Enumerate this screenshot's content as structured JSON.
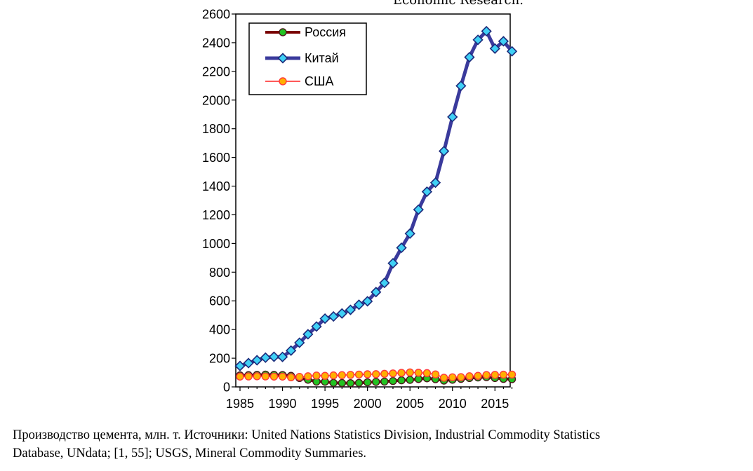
{
  "header_fragment": "Economic Research.",
  "caption": {
    "line1": "Производство цемента, млн. т. Источники:  United Nations Statistics Division, Industrial Commodity Statistics",
    "line2": "Database, UNdata; [1, 55]; USGS, Mineral Commodity Summaries."
  },
  "chart_data": {
    "type": "line",
    "title": "",
    "xlabel": "",
    "ylabel": "",
    "xlim": [
      1985,
      2017
    ],
    "ylim": [
      0,
      2600
    ],
    "x_ticks": [
      1985,
      1990,
      1995,
      2000,
      2005,
      2010,
      2015
    ],
    "y_ticks": [
      0,
      200,
      400,
      600,
      800,
      1000,
      1200,
      1400,
      1600,
      1800,
      2000,
      2200,
      2400,
      2600
    ],
    "legend_position": "top-left",
    "x": [
      1985,
      1986,
      1987,
      1988,
      1989,
      1990,
      1991,
      1992,
      1993,
      1994,
      1995,
      1996,
      1997,
      1998,
      1999,
      2000,
      2001,
      2002,
      2003,
      2004,
      2005,
      2006,
      2007,
      2008,
      2009,
      2010,
      2011,
      2012,
      2013,
      2014,
      2015,
      2016,
      2017
    ],
    "series": [
      {
        "name": "Россия",
        "line_color": "#7a0000",
        "marker_fill": "#22c322",
        "marker": "circle",
        "values": [
          80,
          82,
          84,
          86,
          84,
          83,
          77,
          62,
          50,
          37,
          36,
          28,
          27,
          26,
          28,
          32,
          35,
          37,
          41,
          46,
          49,
          55,
          60,
          54,
          44,
          50,
          56,
          62,
          66,
          68,
          62,
          56,
          54
        ]
      },
      {
        "name": "Китай",
        "line_color": "#3a3a9c",
        "marker_fill": "#3fd0f5",
        "marker": "diamond",
        "values": [
          146,
          166,
          186,
          204,
          210,
          209,
          253,
          308,
          367,
          421,
          476,
          491,
          512,
          537,
          573,
          597,
          661,
          725,
          862,
          970,
          1069,
          1236,
          1361,
          1424,
          1644,
          1882,
          2099,
          2299,
          2420,
          2480,
          2359,
          2410,
          2340
        ]
      },
      {
        "name": "США",
        "line_color": "#ff2020",
        "marker_fill": "#ffb000",
        "marker": "circle",
        "values": [
          72,
          73,
          74,
          73,
          72,
          72,
          67,
          70,
          74,
          79,
          77,
          80,
          82,
          84,
          86,
          88,
          89,
          91,
          94,
          98,
          101,
          99,
          96,
          87,
          64,
          67,
          68,
          74,
          77,
          83,
          84,
          85,
          86
        ]
      }
    ]
  }
}
